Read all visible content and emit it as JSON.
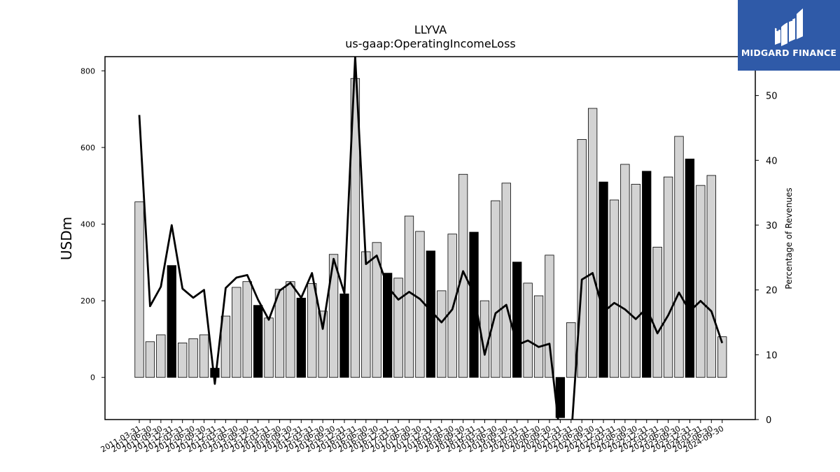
{
  "chart_data": {
    "type": "bar",
    "title": "LLYVA",
    "subtitle": "us-gaap:OperatingIncomeLoss",
    "ylabel": "USDm",
    "y2label": "Percentage of Revenues",
    "ylim": [
      -110,
      837
    ],
    "y2lim": [
      0,
      56
    ],
    "yticks": [
      0,
      200,
      400,
      600,
      800
    ],
    "y2ticks": [
      0,
      10,
      20,
      30,
      40,
      50
    ],
    "categories": [
      "2011-03-31",
      "2011-06-30",
      "2011-09-30",
      "2011-12-31",
      "2012-03-31",
      "2012-06-30",
      "2012-09-30",
      "2012-12-31",
      "2013-03-31",
      "2013-06-30",
      "2013-09-30",
      "2013-12-31",
      "2014-03-31",
      "2014-06-30",
      "2014-09-30",
      "2014-12-31",
      "2015-03-31",
      "2015-06-30",
      "2015-09-30",
      "2015-12-31",
      "2016-03-31",
      "2016-06-30",
      "2016-09-30",
      "2016-12-31",
      "2017-03-31",
      "2017-06-30",
      "2017-09-30",
      "2017-12-31",
      "2018-03-31",
      "2018-06-30",
      "2018-09-30",
      "2018-12-31",
      "2019-03-31",
      "2019-06-30",
      "2019-09-30",
      "2019-12-31",
      "2020-03-31",
      "2020-06-30",
      "2020-09-30",
      "2020-12-31",
      "2021-03-31",
      "2021-06-30",
      "2021-09-30",
      "2021-12-31",
      "2022-03-31",
      "2022-06-30",
      "2022-09-30",
      "2022-12-31",
      "2023-03-31",
      "2023-06-30",
      "2023-09-30",
      "2023-12-31",
      "2024-03-31",
      "2024-06-30",
      "2024-09-30"
    ],
    "series": [
      {
        "name": "",
        "kind": "bar",
        "values": [
          458,
          93,
          111,
          292,
          90,
          101,
          111,
          24,
          160,
          235,
          250,
          188,
          155,
          230,
          250,
          207,
          245,
          173,
          321,
          218,
          780,
          328,
          352,
          272,
          259,
          421,
          381,
          330,
          226,
          374,
          530,
          379,
          200,
          461,
          507,
          301,
          246,
          213,
          319,
          -105,
          143,
          621,
          702,
          510,
          463,
          556,
          504,
          538,
          340,
          523,
          629,
          570,
          501,
          527,
          106
        ],
        "highlight_index_from": 3,
        "highlight_every": 4,
        "highlight_color": "#000000",
        "color": "#d3d3d3"
      },
      {
        "name": "",
        "kind": "line",
        "axis": "right",
        "color": "#000000",
        "values": [
          47,
          17.5,
          20.5,
          30,
          20.2,
          18.8,
          20,
          5.5,
          20.3,
          21.9,
          22.3,
          18.5,
          15.4,
          19.9,
          21.1,
          18.8,
          22.6,
          14,
          24.8,
          19.5,
          56,
          24,
          25.3,
          20.5,
          18.5,
          19.7,
          18.6,
          16.8,
          15,
          17,
          22.9,
          19.4,
          10,
          16.4,
          17.7,
          11.5,
          12.2,
          11.2,
          11.7,
          -3,
          -3,
          21.6,
          22.6,
          16.6,
          18,
          17,
          15.5,
          17.2,
          13.3,
          16.1,
          19.6,
          16.7,
          18.3,
          16.7,
          11.8
        ]
      }
    ]
  },
  "logo": {
    "text": "MIDGARD FINANCE",
    "icon": "midgard-finance-logo-icon",
    "bg_color": "#2f5aa8"
  }
}
